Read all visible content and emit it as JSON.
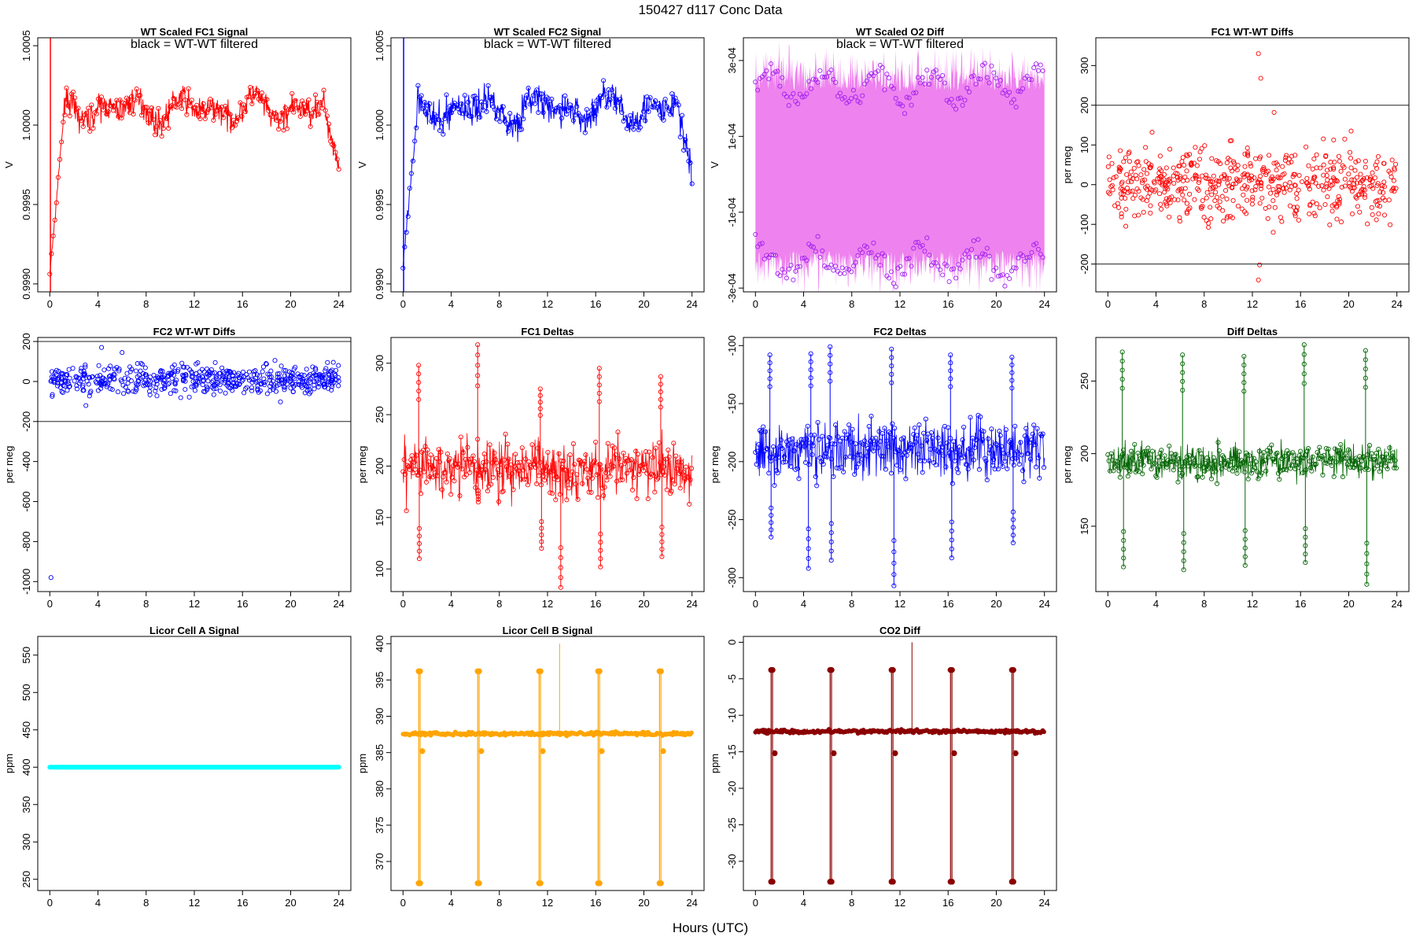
{
  "figure": {
    "title": "150427   d117   Conc Data",
    "xlabel": "Hours (UTC)"
  },
  "chart_data": [
    {
      "id": "p1",
      "type": "line",
      "title": "WT Scaled FC1 Signal",
      "note": "black = WT-WT filtered",
      "ylabel": "V",
      "color": "#ff0000",
      "ylim": [
        0.99895,
        1.00055
      ],
      "yticks": [
        "0.9990",
        "0.9995",
        "1.0000",
        "1.0005"
      ],
      "ytick_values": [
        0.999,
        0.9995,
        1.0,
        1.0005
      ],
      "xlim": [
        -1,
        25
      ],
      "xticks": [
        "0",
        "4",
        "8",
        "12",
        "16",
        "20",
        "24"
      ],
      "style": "signal",
      "base": 1.0001,
      "amp": 9e-05,
      "noise": 4e-05,
      "start": 0.99905,
      "end": 0.99975
    },
    {
      "id": "p2",
      "type": "line",
      "title": "WT Scaled FC2 Signal",
      "note": "black = WT-WT filtered",
      "ylabel": "V",
      "color": "#0000ff",
      "ylim": [
        0.99895,
        1.00055
      ],
      "yticks": [
        "0.9990",
        "0.9995",
        "1.0000",
        "1.0005"
      ],
      "ytick_values": [
        0.999,
        0.9995,
        1.0,
        1.0005
      ],
      "xlim": [
        -1,
        25
      ],
      "xticks": [
        "0",
        "4",
        "8",
        "12",
        "16",
        "20",
        "24"
      ],
      "style": "signal",
      "base": 1.0001,
      "amp": 0.0001,
      "noise": 5e-05,
      "start": 0.9991,
      "end": 0.9997
    },
    {
      "id": "p3",
      "type": "area",
      "title": "WT Scaled O2 Diff",
      "note": "black = WT-WT filtered",
      "ylabel": "V",
      "color": "#ee82ee",
      "color2": "#a020f0",
      "ylim": [
        -0.00031,
        0.00036
      ],
      "yticks": [
        "-3e-04",
        "-1e-04",
        "1e-04",
        "3e-04"
      ],
      "ytick_values": [
        -0.0003,
        -0.0001,
        0.0001,
        0.0003
      ],
      "xlim": [
        -1,
        25
      ],
      "xticks": [
        "0",
        "4",
        "8",
        "12",
        "16",
        "20",
        "24"
      ],
      "style": "band",
      "upper": 0.00022,
      "lower": -0.0002
    },
    {
      "id": "p4",
      "type": "scatter",
      "title": "FC1 WT-WT Diffs",
      "ylabel": "per meg",
      "color": "#ff0000",
      "ylim": [
        -270,
        370
      ],
      "yticks": [
        "-200",
        "-100",
        "0",
        "100",
        "200",
        "300"
      ],
      "ytick_values": [
        -200,
        -100,
        0,
        100,
        200,
        300
      ],
      "xlim": [
        -1,
        25
      ],
      "xticks": [
        "0",
        "4",
        "8",
        "12",
        "16",
        "20",
        "24"
      ],
      "style": "scatter",
      "center": 5,
      "spread": 45,
      "hlines": [
        200,
        -200
      ],
      "outliers": [
        [
          12.5,
          330
        ],
        [
          12.7,
          268
        ],
        [
          13.8,
          182
        ],
        [
          12.6,
          -202
        ],
        [
          12.5,
          -240
        ],
        [
          20.2,
          135
        ]
      ]
    },
    {
      "id": "p5",
      "type": "scatter",
      "title": "FC2 WT-WT Diffs",
      "ylabel": "per meg",
      "color": "#0000ff",
      "ylim": [
        -1050,
        220
      ],
      "yticks": [
        "-1000",
        "-800",
        "-600",
        "-400",
        "-200",
        "0",
        "200"
      ],
      "ytick_values": [
        -1000,
        -800,
        -600,
        -400,
        -200,
        0,
        200
      ],
      "xlim": [
        -1,
        25
      ],
      "xticks": [
        "0",
        "4",
        "8",
        "12",
        "16",
        "20",
        "24"
      ],
      "style": "scatter",
      "center": 10,
      "spread": 35,
      "hlines": [
        200,
        -200
      ],
      "outliers": [
        [
          0.1,
          -980
        ],
        [
          4.3,
          170
        ],
        [
          3.0,
          -120
        ],
        [
          6.0,
          145
        ]
      ]
    },
    {
      "id": "p6",
      "type": "line",
      "title": "FC1 Deltas",
      "ylabel": "per meg",
      "color": "#ff0000",
      "ylim": [
        78,
        325
      ],
      "yticks": [
        "100",
        "150",
        "200",
        "250",
        "300"
      ],
      "ytick_values": [
        100,
        150,
        200,
        250,
        300
      ],
      "xlim": [
        -1,
        25
      ],
      "xticks": [
        "0",
        "4",
        "8",
        "12",
        "16",
        "20",
        "24"
      ],
      "style": "deltas",
      "center": 198,
      "spread": 14,
      "spikes": [
        [
          1.3,
          298
        ],
        [
          1.35,
          110
        ],
        [
          6.2,
          318
        ],
        [
          6.25,
          165
        ],
        [
          11.4,
          275
        ],
        [
          11.5,
          120
        ],
        [
          13.1,
          82
        ],
        [
          16.3,
          295
        ],
        [
          16.4,
          102
        ],
        [
          21.4,
          287
        ],
        [
          21.5,
          112
        ]
      ]
    },
    {
      "id": "p7",
      "type": "line",
      "title": "FC2 Deltas",
      "ylabel": "per meg",
      "color": "#0000ff",
      "ylim": [
        -312,
        -93
      ],
      "yticks": [
        "-300",
        "-250",
        "-200",
        "-150",
        "-100"
      ],
      "ytick_values": [
        -300,
        -250,
        -200,
        -150,
        -100
      ],
      "xlim": [
        -1,
        25
      ],
      "xticks": [
        "0",
        "4",
        "8",
        "12",
        "16",
        "20",
        "24"
      ],
      "style": "deltas",
      "center": -190,
      "spread": 12,
      "spikes": [
        [
          1.2,
          -108
        ],
        [
          1.3,
          -265
        ],
        [
          4.6,
          -107
        ],
        [
          4.4,
          -292
        ],
        [
          6.2,
          -101
        ],
        [
          6.3,
          -285
        ],
        [
          11.3,
          -103
        ],
        [
          11.5,
          -307
        ],
        [
          16.2,
          -108
        ],
        [
          16.3,
          -283
        ],
        [
          21.3,
          -110
        ],
        [
          21.4,
          -270
        ]
      ]
    },
    {
      "id": "p8",
      "type": "line",
      "title": "Diff Deltas",
      "ylabel": "per meg",
      "color": "#006400",
      "ylim": [
        105,
        280
      ],
      "yticks": [
        "150",
        "200",
        "250"
      ],
      "ytick_values": [
        150,
        200,
        250
      ],
      "xlim": [
        -1,
        25
      ],
      "xticks": [
        "0",
        "4",
        "8",
        "12",
        "16",
        "20",
        "24"
      ],
      "style": "deltas",
      "center": 195,
      "spread": 6,
      "spikes": [
        [
          1.2,
          270
        ],
        [
          1.3,
          122
        ],
        [
          6.2,
          268
        ],
        [
          6.3,
          120
        ],
        [
          11.3,
          267
        ],
        [
          11.4,
          123
        ],
        [
          16.3,
          275
        ],
        [
          16.4,
          125
        ],
        [
          21.4,
          271
        ],
        [
          21.5,
          110
        ]
      ]
    },
    {
      "id": "p9",
      "type": "line",
      "title": "Licor Cell A Signal",
      "ylabel": "ppm",
      "color": "#00ffff",
      "ylim": [
        235,
        575
      ],
      "yticks": [
        "250",
        "300",
        "350",
        "400",
        "450",
        "500",
        "550"
      ],
      "ytick_values": [
        250,
        300,
        350,
        400,
        450,
        500,
        550
      ],
      "xlim": [
        -1,
        25
      ],
      "xticks": [
        "0",
        "4",
        "8",
        "12",
        "16",
        "20",
        "24"
      ],
      "style": "flat",
      "value": 400
    },
    {
      "id": "p10",
      "type": "line",
      "title": "Licor Cell B Signal",
      "ylabel": "ppm",
      "color": "#ffa500",
      "ylim": [
        366,
        401
      ],
      "yticks": [
        "370",
        "375",
        "380",
        "385",
        "390",
        "395",
        "400"
      ],
      "ytick_values": [
        370,
        375,
        380,
        385,
        390,
        395,
        400
      ],
      "xlim": [
        -1,
        25
      ],
      "xticks": [
        "0",
        "4",
        "8",
        "12",
        "16",
        "20",
        "24"
      ],
      "style": "licor",
      "value": 387.6,
      "high": 396.2,
      "low": 367.0,
      "dip": 385.2,
      "spike_x": [
        1.3,
        6.2,
        11.3,
        16.2,
        21.3
      ],
      "bump": [
        13.0,
        400.0
      ]
    },
    {
      "id": "p11",
      "type": "line",
      "title": "CO2 Diff",
      "ylabel": "ppm",
      "color": "#8b0000",
      "ylim": [
        -34,
        0.8
      ],
      "yticks": [
        "-30",
        "-25",
        "-20",
        "-15",
        "-10",
        "-5",
        "0"
      ],
      "ytick_values": [
        -30,
        -25,
        -20,
        -15,
        -10,
        -5,
        0
      ],
      "xlim": [
        -1,
        25
      ],
      "xticks": [
        "0",
        "4",
        "8",
        "12",
        "16",
        "20",
        "24"
      ],
      "style": "licor",
      "value": -12.2,
      "high": -3.8,
      "low": -32.8,
      "dip": -15.2,
      "spike_x": [
        1.3,
        6.2,
        11.3,
        16.2,
        21.3
      ],
      "bump": [
        13.0,
        0.0
      ]
    }
  ]
}
